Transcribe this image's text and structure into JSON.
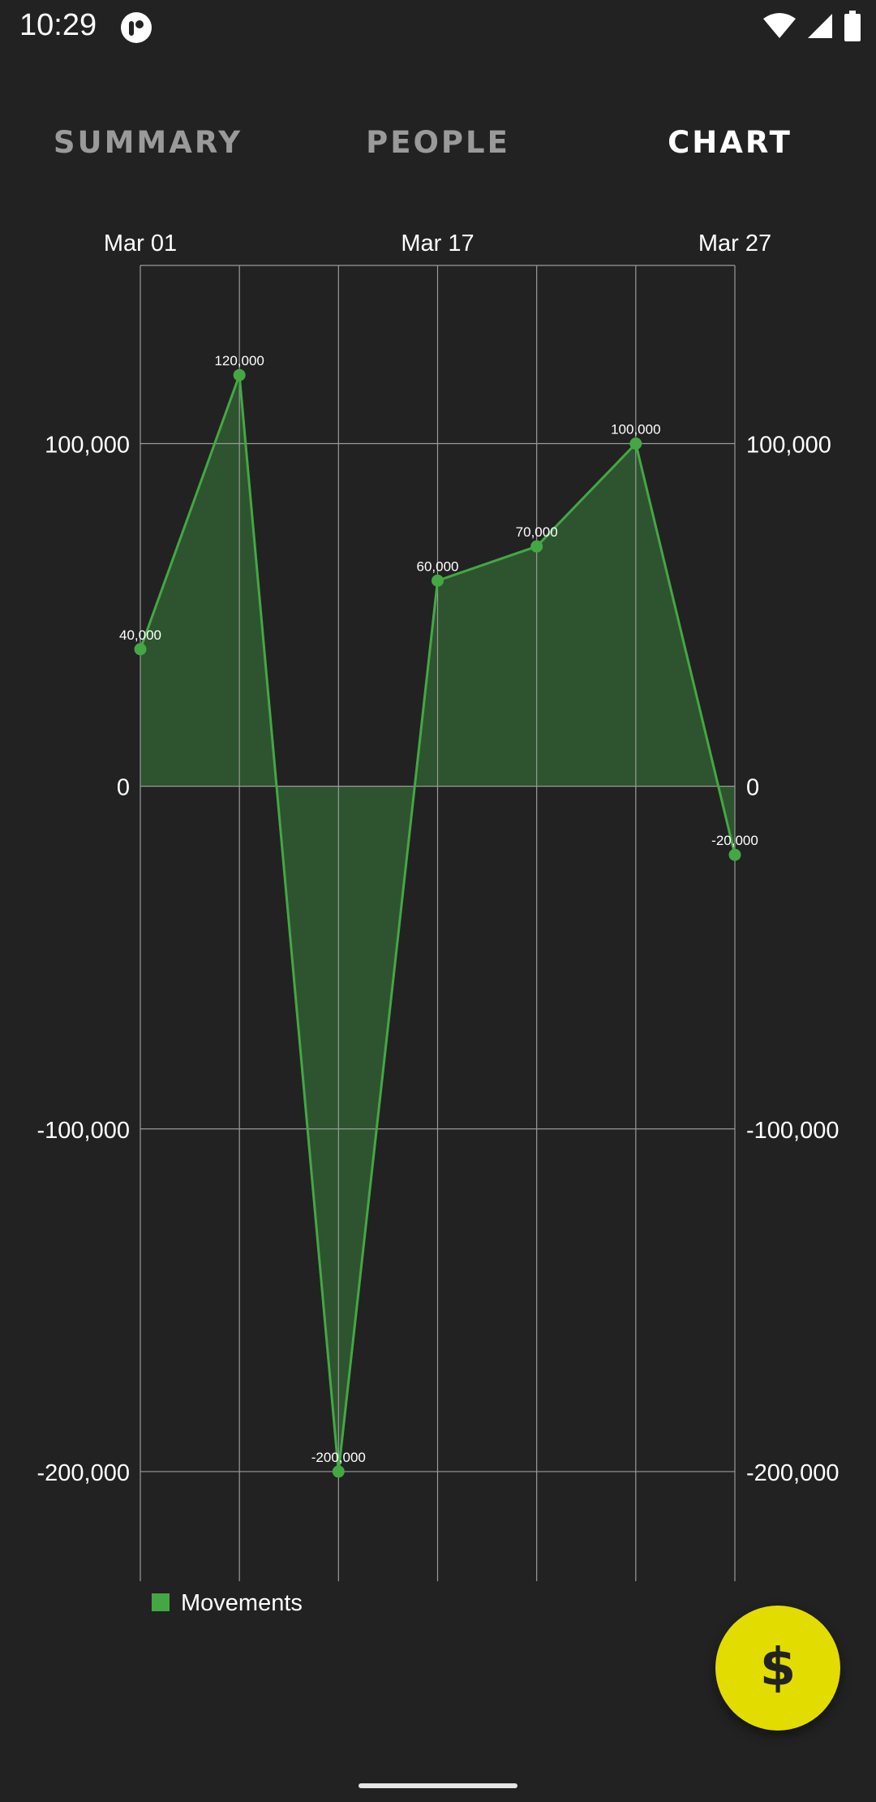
{
  "status_bar": {
    "time": "10:29",
    "icons": [
      "app-notification-icon",
      "wifi-icon",
      "cellular-signal-icon",
      "battery-icon"
    ]
  },
  "tabs": [
    {
      "label": "SUMMARY",
      "active": false
    },
    {
      "label": "PEOPLE",
      "active": false
    },
    {
      "label": "CHART",
      "active": true
    }
  ],
  "fab": {
    "label": "$",
    "icon": "dollar-icon"
  },
  "colors": {
    "background": "#222222",
    "series_line": "#43a843",
    "series_fill": "#2f5a30",
    "fab": "#e2dc00",
    "grid": "#9a9a9a"
  },
  "chart_data": {
    "type": "area",
    "x_tick_labels": [
      "Mar 01",
      "Mar 17",
      "Mar 27"
    ],
    "x_tick_indices": [
      0,
      3,
      6
    ],
    "y_ticks": [
      100000,
      0,
      -100000,
      -200000
    ],
    "y_tick_labels_left": [
      "100,000",
      "0",
      "-100,000",
      "-200,000"
    ],
    "y_tick_labels_right": [
      "100,000",
      "0",
      "-100,000",
      "-200,000"
    ],
    "ylim": [
      -232000,
      152000
    ],
    "grid": true,
    "legend": {
      "position": "bottom-left"
    },
    "series": [
      {
        "name": "Movements",
        "values": [
          40000,
          120000,
          -200000,
          60000,
          70000,
          100000,
          -20000
        ],
        "labels": [
          "40,000",
          "120,000",
          "-200,000",
          "60,000",
          "70,000",
          "100,000",
          "-20,000"
        ]
      }
    ]
  }
}
